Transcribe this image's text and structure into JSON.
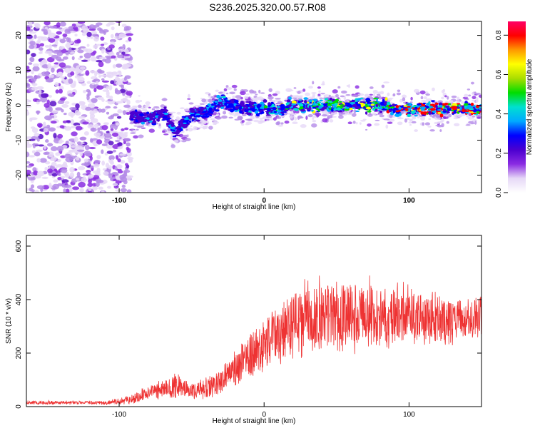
{
  "title": "S236.2025.320.00.57.R08",
  "chart_data": [
    {
      "type": "heatmap",
      "name": "spectrogram",
      "xlabel": "Height of straight line (km)",
      "ylabel": "Frequency (Hz)",
      "xlim": [
        -164,
        150
      ],
      "ylim": [
        -25,
        24
      ],
      "xticks": [
        -100,
        0,
        100
      ],
      "yticks": [
        -20,
        -10,
        0,
        10,
        20
      ],
      "grid": false,
      "colorbar": {
        "label": "Normalized spectral amplitude",
        "range": [
          0,
          0.87
        ],
        "ticks": [
          0.0,
          0.2,
          0.4,
          0.6,
          0.8
        ],
        "colormap": [
          "#ffffff",
          "#e6d8f7",
          "#8a2be2",
          "#4b00d0",
          "#0000ff",
          "#00aaff",
          "#00e0d0",
          "#00dd00",
          "#aadd00",
          "#ffff00",
          "#ff9900",
          "#ff0000",
          "#ff0066"
        ]
      },
      "ridge": {
        "description_points_x": [
          -92,
          -80,
          -68,
          -62,
          -50,
          -40,
          -30,
          -20,
          -10,
          0,
          10,
          20,
          30,
          40,
          50,
          60,
          70,
          80,
          90,
          100,
          110,
          120,
          130,
          140,
          150
        ],
        "description_points_y": [
          -3,
          -4,
          -2,
          -8,
          -3,
          -2,
          1,
          0,
          -1,
          -1,
          -1,
          0,
          0,
          0,
          0,
          0,
          0,
          0,
          -1,
          -1,
          -1,
          -1,
          -1,
          -1,
          -1
        ]
      }
    },
    {
      "type": "line",
      "name": "snr",
      "xlabel": "Height of straight line (km)",
      "ylabel": "SNR (10 * v/v)",
      "xlim": [
        -164,
        150
      ],
      "ylim": [
        0,
        640
      ],
      "xticks": [
        -100,
        0,
        100
      ],
      "yticks": [
        0,
        200,
        400,
        600
      ],
      "color": "#ee3333",
      "grid": false,
      "envelope": {
        "x": [
          -164,
          -110,
          -92,
          -80,
          -70,
          -60,
          -50,
          -40,
          -30,
          -20,
          -10,
          0,
          10,
          20,
          30,
          40,
          50,
          60,
          70,
          80,
          90,
          100,
          110,
          120,
          130,
          140,
          150
        ],
        "mean": [
          15,
          15,
          25,
          50,
          60,
          80,
          55,
          70,
          90,
          150,
          180,
          230,
          280,
          310,
          330,
          340,
          350,
          345,
          345,
          340,
          340,
          335,
          330,
          330,
          325,
          330,
          335
        ],
        "spread": [
          10,
          10,
          25,
          40,
          50,
          70,
          40,
          60,
          70,
          100,
          120,
          140,
          170,
          180,
          190,
          200,
          210,
          190,
          180,
          170,
          160,
          150,
          140,
          130,
          120,
          110,
          110
        ]
      }
    }
  ]
}
